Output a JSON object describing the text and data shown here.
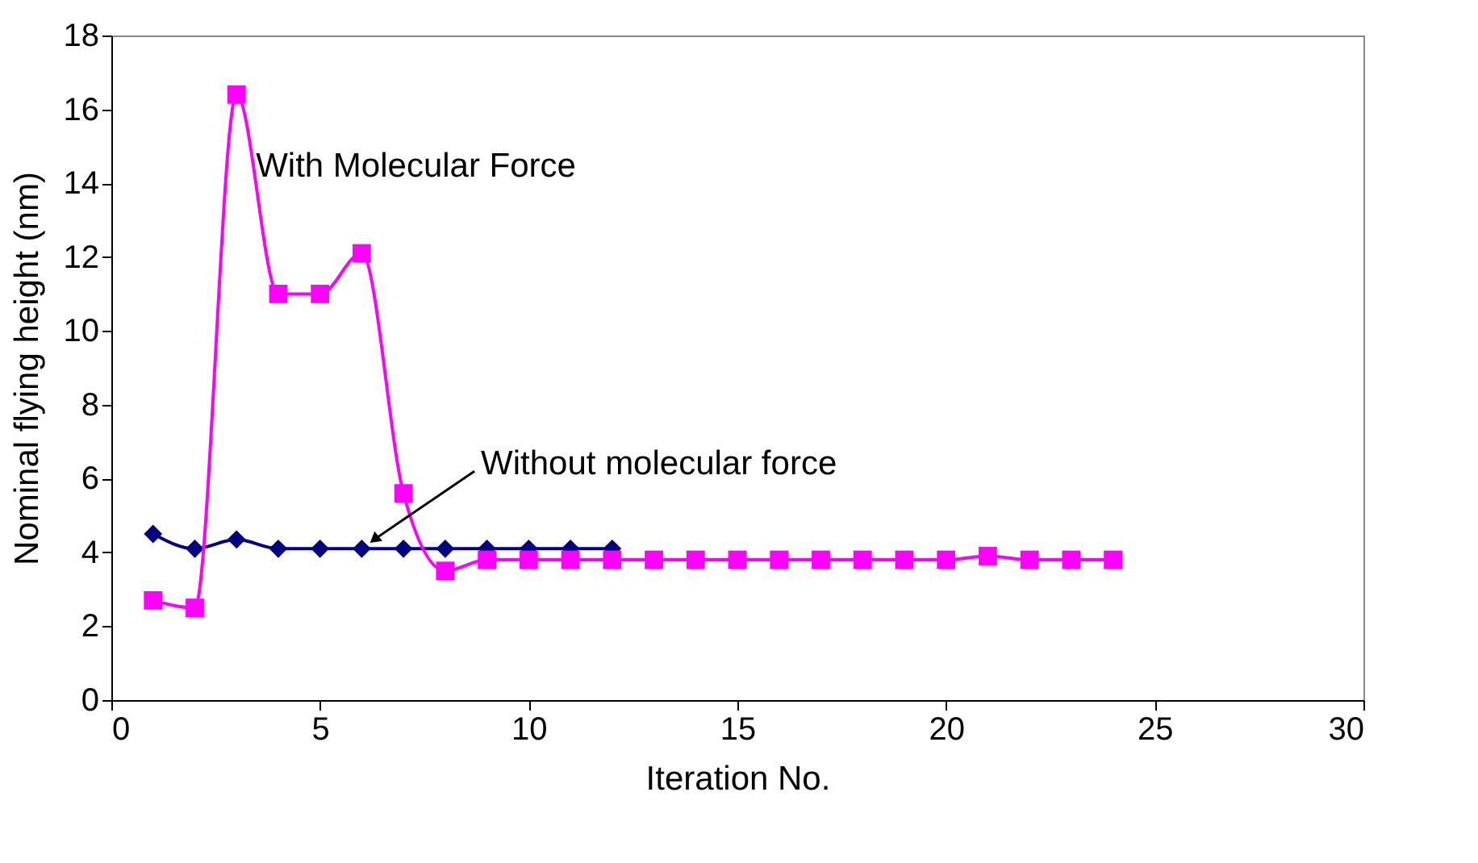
{
  "chart_data": {
    "type": "line",
    "xlabel": "Iteration No.",
    "ylabel": "Nominal flying height (nm)",
    "xlim": [
      0,
      30
    ],
    "xticks": [
      0,
      5,
      10,
      15,
      20,
      25,
      30
    ],
    "ylim": [
      0,
      18
    ],
    "yticks": [
      0,
      2,
      4,
      6,
      8,
      10,
      12,
      14,
      16,
      18
    ],
    "grid": false,
    "series": [
      {
        "name": "Without molecular force",
        "color": "#000080",
        "marker": "diamond",
        "x": [
          1,
          2,
          3,
          4,
          5,
          6,
          7,
          8,
          9,
          10,
          11,
          12
        ],
        "values": [
          4.5,
          4.1,
          4.35,
          4.1,
          4.1,
          4.1,
          4.1,
          4.1,
          4.1,
          4.1,
          4.1,
          4.1
        ]
      },
      {
        "name": "With Molecular Force",
        "color": "#ff00ff",
        "marker": "square",
        "x": [
          1,
          2,
          3,
          4,
          5,
          6,
          7,
          8,
          9,
          10,
          11,
          12,
          13,
          14,
          15,
          16,
          17,
          18,
          19,
          20,
          21,
          22,
          23,
          24
        ],
        "values": [
          2.7,
          2.5,
          16.4,
          11.0,
          11.0,
          12.1,
          5.6,
          3.5,
          3.8,
          3.8,
          3.8,
          3.8,
          3.8,
          3.8,
          3.8,
          3.8,
          3.8,
          3.8,
          3.8,
          3.8,
          3.9,
          3.8,
          3.8,
          3.8
        ]
      }
    ]
  }
}
